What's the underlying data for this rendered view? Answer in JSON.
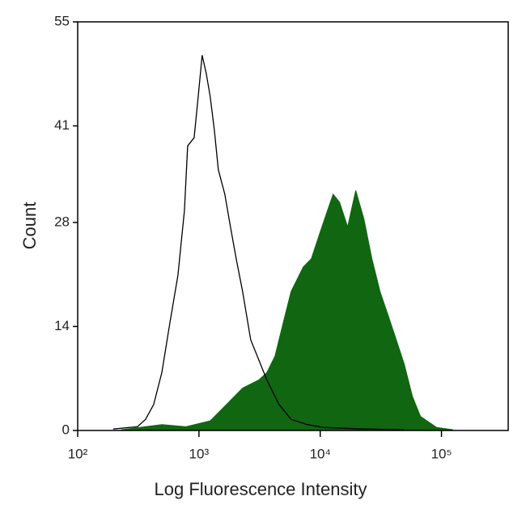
{
  "chart_data": {
    "type": "histogram-overlay",
    "xlabel": "Log Fluorescence Intensity",
    "ylabel": "Count",
    "log_scale": "x",
    "xlim": [
      100,
      355000
    ],
    "ylim": [
      0,
      55
    ],
    "xticks": [
      {
        "value": 100,
        "label": "10²"
      },
      {
        "value": 1000,
        "label": "10³"
      },
      {
        "value": 10000,
        "label": "10⁴"
      },
      {
        "value": 100000,
        "label": "10⁵"
      }
    ],
    "yticks": [
      0,
      14,
      28,
      41,
      55
    ],
    "series": [
      {
        "style": "filled",
        "color": "#116611",
        "x": [
          229,
          494,
          782,
          1240,
          1687,
          2291,
          3115,
          3631,
          4236,
          4937,
          5754,
          7244,
          8449,
          9848,
          11480,
          12790,
          14450,
          16840,
          19640,
          22910,
          26710,
          31120,
          36310,
          42370,
          49340,
          57540,
          67140,
          91200,
          123900
        ],
        "values": [
          0.1,
          0.8,
          0.5,
          1.3,
          3.5,
          5.7,
          6.8,
          7.8,
          10.0,
          14.4,
          18.7,
          22.0,
          23.1,
          26.4,
          29.6,
          31.8,
          30.7,
          27.4,
          32.3,
          28.5,
          23.1,
          18.7,
          15.5,
          12.2,
          8.9,
          4.6,
          1.9,
          0.4,
          0.1
        ]
      },
      {
        "style": "outline",
        "color": "#000000",
        "x": [
          196,
          311,
          363,
          423,
          494,
          575,
          671,
          759,
          807,
          912,
          985,
          1063,
          1148,
          1240,
          1339,
          1445,
          1634,
          1820,
          2028,
          2291,
          2671,
          3115,
          3631,
          4571,
          5754,
          7816,
          10630,
          22900,
          49300
        ],
        "values": [
          0.2,
          0.5,
          1.5,
          3.5,
          7.8,
          14.4,
          20.9,
          29.6,
          38.3,
          39.4,
          44.9,
          50.5,
          48.1,
          44.9,
          40.5,
          35.1,
          31.8,
          27.4,
          23.1,
          18.7,
          12.2,
          9.5,
          6.8,
          3.5,
          1.5,
          0.8,
          0.4,
          0.2,
          0.1
        ]
      }
    ]
  }
}
